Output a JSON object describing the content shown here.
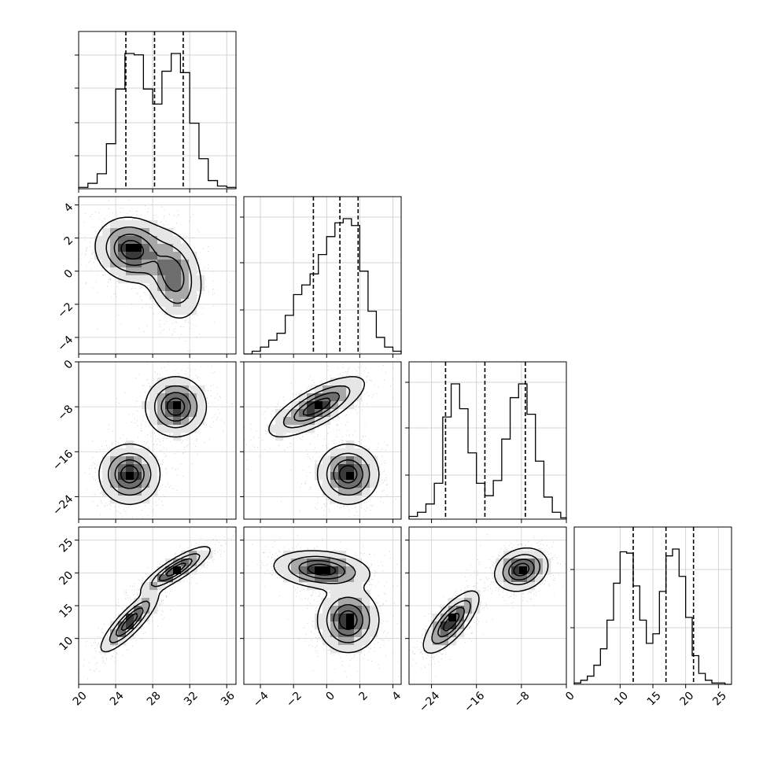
{
  "figure": {
    "type": "corner-plot",
    "dimensions": 4,
    "hist_style": "step",
    "show_grid": true,
    "quantile_line_style": "dashed"
  },
  "chart_data": {
    "type": "corner",
    "params": [
      {
        "index": 0,
        "range": [
          20,
          37
        ],
        "ticks": [
          20,
          24,
          28,
          32,
          36
        ],
        "tick_labels": [
          "20",
          "24",
          "28",
          "32",
          "36"
        ],
        "quantiles": [
          25.1,
          28.2,
          31.3
        ],
        "hist_edges": [
          20,
          21,
          22,
          23,
          24,
          25,
          26,
          27,
          28,
          29,
          30,
          31,
          32,
          33,
          34,
          35,
          36,
          37
        ],
        "hist_values": [
          0.01,
          0.04,
          0.11,
          0.33,
          0.73,
          0.99,
          0.98,
          0.73,
          0.62,
          0.86,
          0.99,
          0.85,
          0.48,
          0.22,
          0.06,
          0.02,
          0.01
        ]
      },
      {
        "index": 1,
        "range": [
          -5,
          4.5
        ],
        "ticks": [
          -4,
          -2,
          0,
          2,
          4
        ],
        "tick_labels": [
          "−4",
          "−2",
          "0",
          "2",
          "4"
        ],
        "quantiles": [
          -0.8,
          0.8,
          1.9
        ],
        "hist_edges": [
          -5.0,
          -4.5,
          -4.0,
          -3.5,
          -3.0,
          -2.5,
          -2.0,
          -1.5,
          -1.0,
          -0.5,
          0.0,
          0.5,
          1.0,
          1.5,
          2.0,
          2.5,
          3.0,
          3.5,
          4.0,
          4.5
        ],
        "hist_values": [
          0.0,
          0.02,
          0.05,
          0.1,
          0.15,
          0.28,
          0.43,
          0.5,
          0.58,
          0.72,
          0.85,
          0.95,
          0.98,
          0.93,
          0.6,
          0.31,
          0.12,
          0.05,
          0.02
        ]
      },
      {
        "index": 2,
        "range": [
          -28,
          0
        ],
        "ticks": [
          -24,
          -16,
          -8,
          0
        ],
        "tick_labels": [
          "−24",
          "−16",
          "−8",
          "0"
        ],
        "quantiles": [
          -21.5,
          -14.5,
          -7.3
        ],
        "hist_edges": [
          -28,
          -26.5,
          -25,
          -23.5,
          -22,
          -20.5,
          -19,
          -17.5,
          -16,
          -14.5,
          -13,
          -11.5,
          -10,
          -8.5,
          -7,
          -5.5,
          -4,
          -2.5,
          -1,
          0
        ],
        "hist_values": [
          0.02,
          0.05,
          0.11,
          0.26,
          0.74,
          0.98,
          0.8,
          0.48,
          0.26,
          0.17,
          0.28,
          0.58,
          0.88,
          0.98,
          0.76,
          0.42,
          0.16,
          0.05,
          0.01
        ]
      },
      {
        "index": 3,
        "range": [
          3,
          27
        ],
        "ticks": [
          10,
          15,
          20,
          25
        ],
        "tick_labels": [
          "10",
          "15",
          "20",
          "25"
        ],
        "quantiles": [
          12.0,
          17.0,
          21.2
        ],
        "hist_edges": [
          3,
          4,
          5,
          6,
          7,
          8,
          9,
          10,
          11,
          12,
          13,
          14,
          15,
          16,
          17,
          18,
          19,
          20,
          21,
          22,
          23,
          24,
          25,
          26,
          27
        ],
        "hist_values": [
          0.01,
          0.03,
          0.06,
          0.14,
          0.26,
          0.47,
          0.74,
          0.97,
          0.96,
          0.72,
          0.47,
          0.3,
          0.37,
          0.68,
          0.94,
          0.99,
          0.79,
          0.49,
          0.21,
          0.08,
          0.03,
          0.01,
          0.01,
          0.0
        ]
      }
    ],
    "pairs": [
      {
        "x": 0,
        "y": 1,
        "clusters": [
          {
            "mean": [
              25.7,
              1.3
            ],
            "sd": [
              1.9,
              0.95
            ],
            "corr": -0.1,
            "weight": 1.0
          },
          {
            "mean": [
              30.3,
              -0.3
            ],
            "sd": [
              1.5,
              1.3
            ],
            "corr": -0.2,
            "weight": 0.8
          }
        ]
      },
      {
        "x": 0,
        "y": 2,
        "clusters": [
          {
            "mean": [
              25.5,
              -20.0
            ],
            "sd": [
              1.6,
              2.6
            ],
            "corr": 0.0,
            "weight": 1.0
          },
          {
            "mean": [
              30.5,
              -8.0
            ],
            "sd": [
              1.6,
              2.6
            ],
            "corr": 0.0,
            "weight": 1.0
          }
        ]
      },
      {
        "x": 1,
        "y": 2,
        "clusters": [
          {
            "mean": [
              -0.6,
              -8.0
            ],
            "sd": [
              1.4,
              2.6
            ],
            "corr": 0.75,
            "weight": 1.0
          },
          {
            "mean": [
              1.3,
              -20.0
            ],
            "sd": [
              0.9,
              2.6
            ],
            "corr": 0.0,
            "weight": 1.0
          }
        ]
      },
      {
        "x": 0,
        "y": 3,
        "clusters": [
          {
            "mean": [
              25.5,
              12.5
            ],
            "sd": [
              1.5,
              2.2
            ],
            "corr": 0.85,
            "weight": 1.0
          },
          {
            "mean": [
              30.5,
              20.5
            ],
            "sd": [
              1.8,
              1.7
            ],
            "corr": 0.85,
            "weight": 1.0
          }
        ]
      },
      {
        "x": 1,
        "y": 3,
        "clusters": [
          {
            "mean": [
              -0.3,
              20.5
            ],
            "sd": [
              1.4,
              1.4
            ],
            "corr": -0.2,
            "weight": 1.0
          },
          {
            "mean": [
              1.3,
              12.8
            ],
            "sd": [
              0.9,
              2.4
            ],
            "corr": 0.0,
            "weight": 1.0
          }
        ]
      },
      {
        "x": 2,
        "y": 3,
        "clusters": [
          {
            "mean": [
              -20.5,
              12.5
            ],
            "sd": [
              2.4,
              2.3
            ],
            "corr": 0.75,
            "weight": 1.0
          },
          {
            "mean": [
              -8.0,
              20.5
            ],
            "sd": [
              2.3,
              1.6
            ],
            "corr": 0.2,
            "weight": 1.0
          }
        ]
      }
    ]
  }
}
